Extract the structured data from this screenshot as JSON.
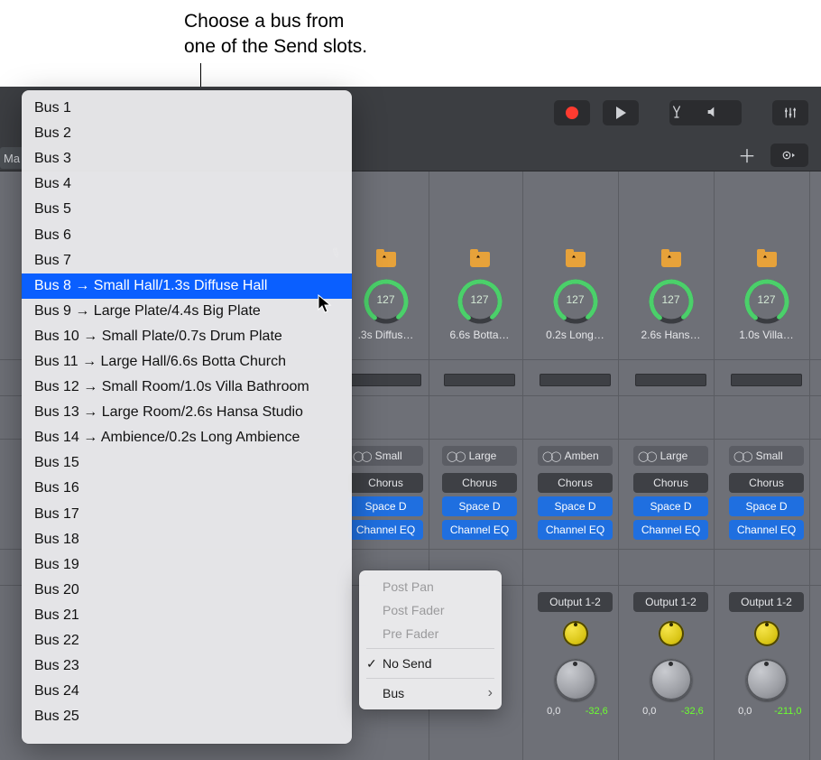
{
  "caption": "Choose a bus from\none of the Send slots.",
  "toolbar": {
    "buttons": [
      "record",
      "play",
      "tuning-fork",
      "speaker",
      "mixer"
    ]
  },
  "header2": {
    "plus": "＋",
    "more": "⊙"
  },
  "ma_label": "Ma",
  "knob_value": "127",
  "channels": [
    {
      "decode_label": ".3s Diffus…",
      "send_label": "Small",
      "inserts": [
        "Chorus",
        "Space D",
        "Channel EQ"
      ],
      "show_pencil": true
    },
    {
      "decode_label": "6.6s Botta…",
      "send_label": "Large",
      "inserts": [
        "Chorus",
        "Space D",
        "Channel EQ"
      ]
    },
    {
      "decode_label": "0.2s Long…",
      "send_label": "Amben",
      "inserts": [
        "Chorus",
        "Space D",
        "Channel EQ"
      ],
      "output": "Output 1-2",
      "db_l": "0,0",
      "db_r": "-32,6"
    },
    {
      "decode_label": "2.6s Hans…",
      "send_label": "Large",
      "inserts": [
        "Chorus",
        "Space D",
        "Channel EQ"
      ],
      "output": "Output 1-2",
      "db_l": "0,0",
      "db_r": "-32,6"
    },
    {
      "decode_label": "1.0s Villa…",
      "send_label": "Small",
      "inserts": [
        "Chorus",
        "Space D",
        "Channel EQ"
      ],
      "output": "Output 1-2",
      "db_l": "0,0",
      "db_r": "-211,0"
    }
  ],
  "bus_menu": {
    "selected_index": 7,
    "items": [
      "Bus 1",
      "Bus 2",
      "Bus 3",
      "Bus 4",
      "Bus 5",
      "Bus 6",
      "Bus 7",
      "Bus 8 → Small Hall/1.3s Diffuse Hall",
      "Bus 9 → Large Plate/4.4s Big Plate",
      "Bus 10 → Small Plate/0.7s Drum Plate",
      "Bus 11 → Large Hall/6.6s Botta Church",
      "Bus 12 → Small Room/1.0s Villa Bathroom",
      "Bus 13 → Large Room/2.6s Hansa Studio",
      "Bus 14 → Ambience/0.2s Long Ambience",
      "Bus 15",
      "Bus 16",
      "Bus 17",
      "Bus 18",
      "Bus 19",
      "Bus 20",
      "Bus 21",
      "Bus 22",
      "Bus 23",
      "Bus 24",
      "Bus 25"
    ]
  },
  "context_menu": {
    "items": [
      {
        "label": "Post Pan",
        "disabled": true
      },
      {
        "label": "Post Fader",
        "disabled": true
      },
      {
        "label": "Pre Fader",
        "disabled": true
      },
      {
        "sep": true
      },
      {
        "label": "No Send",
        "checked": true
      },
      {
        "sep": true
      },
      {
        "label": "Bus",
        "submenu": true
      }
    ]
  },
  "colors": {
    "selection": "#0a5fff",
    "insert_blue": "#1f6fe0",
    "knob_green": "#4bd06a",
    "record_red": "#ff3b30",
    "folder": "#e7a23a",
    "pan_yellow": "#f6e54a"
  }
}
